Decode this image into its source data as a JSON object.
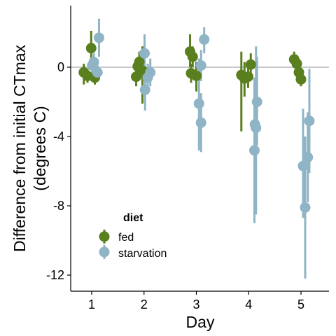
{
  "chart_data": {
    "type": "scatter",
    "subtype": "pointrange",
    "xlabel": "Day",
    "ylabel_lines": [
      "Difference from initial CTmax",
      "(degrees C)"
    ],
    "x_ticks": [
      "1",
      "2",
      "3",
      "4",
      "5"
    ],
    "y_ticks": [
      {
        "value": 0,
        "label": "0"
      },
      {
        "value": -4,
        "label": "-4"
      },
      {
        "value": -8,
        "label": "-8"
      },
      {
        "value": -12,
        "label": "-12"
      }
    ],
    "ylim": [
      -13,
      3.6
    ],
    "reference_line_y": 0,
    "grid": false,
    "legend": {
      "title": "diet",
      "position": "inside-lower-left",
      "entries": [
        {
          "label": "fed",
          "color": "#5a7f1e"
        },
        {
          "label": "starvation",
          "color": "#8fb4c6"
        }
      ]
    },
    "series": [
      {
        "name": "fed",
        "color": "#5a7f1e",
        "points": [
          {
            "x": 0.85,
            "y": -0.3,
            "ylow": -1.0,
            "yhigh": 0.2
          },
          {
            "x": 0.92,
            "y": -0.5,
            "ylow": -0.9,
            "yhigh": -0.1
          },
          {
            "x": 0.99,
            "y": 1.1,
            "ylow": 0.2,
            "yhigh": 2.1
          },
          {
            "x": 1.06,
            "y": -0.6,
            "ylow": -1.0,
            "yhigh": -0.2
          },
          {
            "x": 1.85,
            "y": -0.55,
            "ylow": -1.1,
            "yhigh": 0.0
          },
          {
            "x": 1.91,
            "y": 0.3,
            "ylow": -0.2,
            "yhigh": 0.9
          },
          {
            "x": 1.97,
            "y": -0.2,
            "ylow": -2.1,
            "yhigh": 1.2
          },
          {
            "x": 1.88,
            "y": 0.05,
            "ylow": -0.5,
            "yhigh": 0.6
          },
          {
            "x": 2.88,
            "y": 0.9,
            "ylow": 0.0,
            "yhigh": 1.9
          },
          {
            "x": 2.93,
            "y": 0.6,
            "ylow": 0.0,
            "yhigh": 1.2
          },
          {
            "x": 2.9,
            "y": -0.35,
            "ylow": -0.9,
            "yhigh": 0.2
          },
          {
            "x": 3.0,
            "y": -0.5,
            "ylow": -1.4,
            "yhigh": 0.3
          },
          {
            "x": 3.86,
            "y": -0.45,
            "ylow": -3.7,
            "yhigh": 0.9
          },
          {
            "x": 3.92,
            "y": -0.65,
            "ylow": -1.7,
            "yhigh": 0.3
          },
          {
            "x": 4.04,
            "y": 0.15,
            "ylow": -0.5,
            "yhigh": 0.8
          },
          {
            "x": 3.99,
            "y": -0.55,
            "ylow": -1.2,
            "yhigh": 0.1
          },
          {
            "x": 4.87,
            "y": 0.45,
            "ylow": 0.0,
            "yhigh": 0.9
          },
          {
            "x": 4.92,
            "y": 0.2,
            "ylow": -0.3,
            "yhigh": 0.7
          },
          {
            "x": 4.96,
            "y": -0.3,
            "ylow": -0.7,
            "yhigh": 0.1
          },
          {
            "x": 5.0,
            "y": -0.7,
            "ylow": -1.1,
            "yhigh": -0.3
          }
        ]
      },
      {
        "name": "starvation",
        "color": "#8fb4c6",
        "points": [
          {
            "x": 1.01,
            "y": 0.1,
            "ylow": -0.4,
            "yhigh": 0.6
          },
          {
            "x": 1.04,
            "y": 0.3,
            "ylow": -0.2,
            "yhigh": 0.8
          },
          {
            "x": 1.11,
            "y": -0.3,
            "ylow": -0.8,
            "yhigh": 0.2
          },
          {
            "x": 1.14,
            "y": 1.7,
            "ylow": 0.6,
            "yhigh": 2.8
          },
          {
            "x": 2.01,
            "y": 0.8,
            "ylow": -0.3,
            "yhigh": 1.9
          },
          {
            "x": 2.02,
            "y": -1.3,
            "ylow": -2.5,
            "yhigh": -0.3
          },
          {
            "x": 2.07,
            "y": -0.6,
            "ylow": -1.4,
            "yhigh": 0.2
          },
          {
            "x": 2.12,
            "y": -0.3,
            "ylow": -1.1,
            "yhigh": 0.5
          },
          {
            "x": 3.05,
            "y": -2.1,
            "ylow": -4.8,
            "yhigh": 0.5
          },
          {
            "x": 3.09,
            "y": -3.2,
            "ylow": -4.9,
            "yhigh": -1.5
          },
          {
            "x": 3.09,
            "y": 0.1,
            "ylow": -0.8,
            "yhigh": 1.0
          },
          {
            "x": 3.15,
            "y": 1.6,
            "ylow": 0.8,
            "yhigh": 2.3
          },
          {
            "x": 4.11,
            "y": -4.8,
            "ylow": -9.0,
            "yhigh": -0.6
          },
          {
            "x": 4.12,
            "y": -3.3,
            "ylow": -5.3,
            "yhigh": -1.3
          },
          {
            "x": 4.14,
            "y": -3.5,
            "ylow": -8.5,
            "yhigh": 1.2
          },
          {
            "x": 4.16,
            "y": -2.0,
            "ylow": -4.5,
            "yhigh": 0.6
          },
          {
            "x": 5.04,
            "y": -5.7,
            "ylow": -8.7,
            "yhigh": -2.4
          },
          {
            "x": 5.08,
            "y": -8.1,
            "ylow": -12.2,
            "yhigh": -4.0
          },
          {
            "x": 5.13,
            "y": -5.2,
            "ylow": -7.8,
            "yhigh": -2.6
          },
          {
            "x": 5.16,
            "y": -3.1,
            "ylow": -6.1,
            "yhigh": -0.1
          }
        ]
      }
    ]
  }
}
